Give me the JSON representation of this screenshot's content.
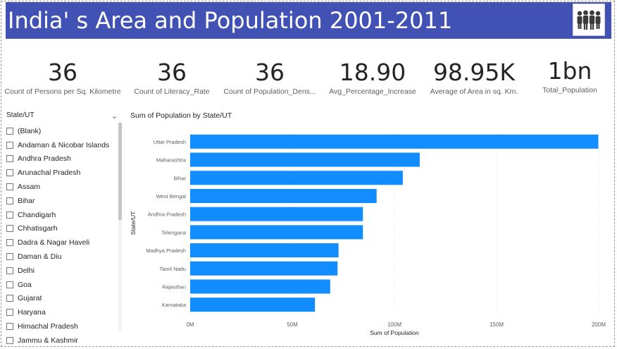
{
  "header": {
    "title": "India' s Area and Population 2001-2011",
    "logo_icon": "people-group-icon"
  },
  "kpis": [
    {
      "value": "36",
      "label": "Count of Persons per Sq. Kilometre"
    },
    {
      "value": "36",
      "label": "Count of Literacy_Rate"
    },
    {
      "value": "36",
      "label": "Count of Population_Dens..."
    },
    {
      "value": "18.90",
      "label": "Avg_Percentage_Increase"
    },
    {
      "value": "98.95K",
      "label": "Average of Area in sq. Km."
    },
    {
      "value": "1bn",
      "label": "Total_Population"
    }
  ],
  "slicer": {
    "title": "State/UT",
    "items": [
      "(Blank)",
      "Andaman & Nicobar Islands",
      "Andhra Pradesh",
      "Arunachal Pradesh",
      "Assam",
      "Bihar",
      "Chandigarh",
      "Chhatisgarh",
      "Dadra & Nagar Haveli",
      "Daman & Diu",
      "Delhi",
      "Goa",
      "Gujarat",
      "Haryana",
      "Himachal Pradesh",
      "Jammu & Kashmir"
    ]
  },
  "colors": {
    "banner": "#4151b4",
    "bar": "#118dff"
  },
  "chart_data": {
    "type": "bar",
    "orientation": "horizontal",
    "title": "Sum of Population by State/UT",
    "xlabel": "Sum of Population",
    "ylabel": "State/UT",
    "categories": [
      "Uttar Pradesh",
      "Maharashtra",
      "Bihar",
      "West Bengal",
      "Andhra Pradesh",
      "Telengana",
      "Madhya Pradesh",
      "Tamil Nadu",
      "Rajasthan",
      "Karnataka"
    ],
    "values": [
      199812341,
      112374333,
      104099452,
      91276115,
      84580777,
      84580777,
      72626809,
      72147030,
      68548437,
      61095297
    ],
    "xlim": [
      0,
      200000000
    ],
    "xticks": [
      0,
      50000000,
      100000000,
      150000000,
      200000000
    ],
    "xtick_labels": [
      "0M",
      "50M",
      "100M",
      "150M",
      "200M"
    ],
    "grid": true
  }
}
